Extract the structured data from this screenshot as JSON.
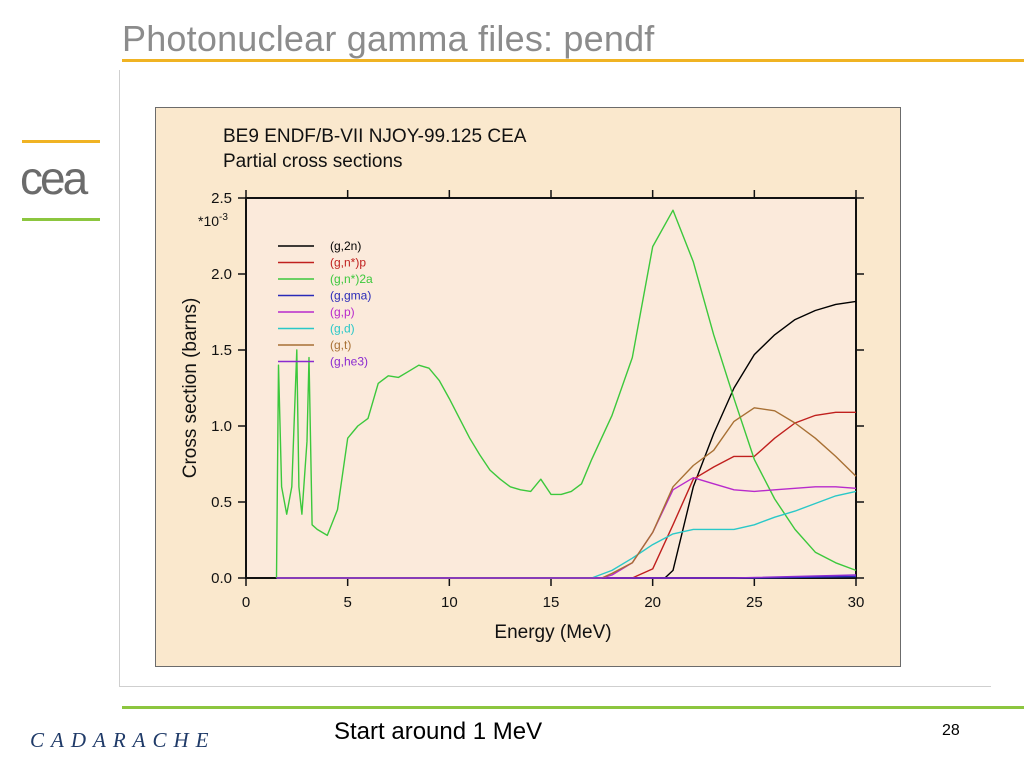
{
  "slide": {
    "title": "Photonuclear gamma files: pendf",
    "footer_text": "Start around 1 MeV",
    "page_number": "28",
    "logo_cea_text": "cea",
    "logo_cadarache_text": "CADARACHE",
    "colors": {
      "title_rule": "#f0b323",
      "footer_rule": "#8cc63f",
      "panel_bg": "#fae8cd",
      "plot_bg": "#fbeadb"
    }
  },
  "chart_data": {
    "type": "line",
    "title": "BE9 ENDF/B-VII NJOY-99.125 CEA",
    "subtitle": "Partial cross sections",
    "xlabel": "Energy (MeV)",
    "ylabel": "Cross section (barns)",
    "y_multiplier": "*10",
    "y_multiplier_exp": "-3",
    "xlim": [
      0,
      30
    ],
    "ylim": [
      0,
      2.5
    ],
    "xticks": [
      "0",
      "5",
      "10",
      "15",
      "20",
      "25",
      "30"
    ],
    "yticks": [
      "0.0",
      "0.5",
      "1.0",
      "1.5",
      "2.0",
      "2.5"
    ],
    "grid": false,
    "legend_position": "top-left",
    "series": [
      {
        "name": "(g,2n)",
        "color": "#000000",
        "x": [
          1.5,
          20.6,
          21.0,
          22.0,
          23.0,
          24.0,
          25.0,
          26.0,
          27.0,
          28.0,
          29.0,
          30.0
        ],
        "y": [
          0.0,
          0.0,
          0.05,
          0.6,
          0.95,
          1.25,
          1.47,
          1.6,
          1.7,
          1.76,
          1.8,
          1.82
        ]
      },
      {
        "name": "(g,n*)p",
        "color": "#c0201e",
        "x": [
          1.5,
          19.0,
          20.0,
          21.0,
          22.0,
          23.0,
          24.0,
          25.0,
          26.0,
          27.0,
          28.0,
          29.0,
          30.0
        ],
        "y": [
          0.0,
          0.0,
          0.06,
          0.35,
          0.65,
          0.73,
          0.8,
          0.8,
          0.92,
          1.02,
          1.07,
          1.09,
          1.09
        ]
      },
      {
        "name": "(g,n*)2a",
        "color": "#3cc83c",
        "x": [
          1.5,
          1.6,
          1.75,
          2.0,
          2.25,
          2.5,
          2.6,
          2.75,
          3.0,
          3.1,
          3.25,
          3.5,
          4.0,
          4.5,
          5.0,
          5.5,
          6.0,
          6.5,
          7.0,
          7.5,
          8.0,
          8.5,
          9.0,
          9.5,
          10.0,
          10.5,
          11.0,
          11.5,
          12.0,
          12.5,
          13.0,
          13.5,
          14.0,
          14.5,
          15.0,
          15.5,
          16.0,
          16.5,
          17.0,
          18.0,
          19.0,
          20.0,
          21.0,
          22.0,
          23.0,
          24.0,
          25.0,
          26.0,
          27.0,
          28.0,
          29.0,
          30.0
        ],
        "y": [
          0.0,
          1.4,
          0.6,
          0.42,
          0.6,
          1.5,
          0.6,
          0.42,
          0.9,
          1.45,
          0.35,
          0.32,
          0.28,
          0.45,
          0.92,
          1.0,
          1.05,
          1.28,
          1.33,
          1.32,
          1.36,
          1.4,
          1.38,
          1.3,
          1.18,
          1.05,
          0.92,
          0.81,
          0.71,
          0.65,
          0.6,
          0.58,
          0.57,
          0.65,
          0.55,
          0.55,
          0.57,
          0.62,
          0.78,
          1.07,
          1.45,
          2.18,
          2.42,
          2.08,
          1.6,
          1.18,
          0.78,
          0.52,
          0.32,
          0.17,
          0.1,
          0.05
        ]
      },
      {
        "name": "(g,gma)",
        "color": "#2a2ab8",
        "x": [
          1.5,
          25.0,
          30.0
        ],
        "y": [
          0.0,
          0.0,
          0.01
        ]
      },
      {
        "name": "(g,p)",
        "color": "#b82acc",
        "x": [
          1.5,
          17.5,
          18.0,
          19.0,
          20.0,
          21.0,
          22.0,
          23.0,
          24.0,
          25.0,
          26.0,
          27.0,
          28.0,
          29.0,
          30.0
        ],
        "y": [
          0.0,
          0.0,
          0.02,
          0.1,
          0.3,
          0.58,
          0.66,
          0.62,
          0.58,
          0.57,
          0.58,
          0.59,
          0.6,
          0.6,
          0.59
        ]
      },
      {
        "name": "(g,d)",
        "color": "#2ac8c8",
        "x": [
          1.5,
          17.0,
          18.0,
          19.0,
          20.0,
          21.0,
          22.0,
          23.0,
          24.0,
          25.0,
          26.0,
          27.0,
          28.0,
          29.0,
          30.0
        ],
        "y": [
          0.0,
          0.0,
          0.05,
          0.13,
          0.22,
          0.29,
          0.32,
          0.32,
          0.32,
          0.35,
          0.4,
          0.44,
          0.49,
          0.54,
          0.57
        ]
      },
      {
        "name": "(g,t)",
        "color": "#a87034",
        "x": [
          1.5,
          17.5,
          18.0,
          19.0,
          20.0,
          21.0,
          22.0,
          23.0,
          24.0,
          25.0,
          26.0,
          27.0,
          28.0,
          29.0,
          30.0
        ],
        "y": [
          0.0,
          0.0,
          0.03,
          0.1,
          0.3,
          0.6,
          0.74,
          0.84,
          1.03,
          1.12,
          1.1,
          1.02,
          0.92,
          0.8,
          0.67
        ]
      },
      {
        "name": "(g,he3)",
        "color": "#8a2ad0",
        "x": [
          1.5,
          24.0,
          30.0
        ],
        "y": [
          0.0,
          0.0,
          0.02
        ]
      }
    ]
  }
}
